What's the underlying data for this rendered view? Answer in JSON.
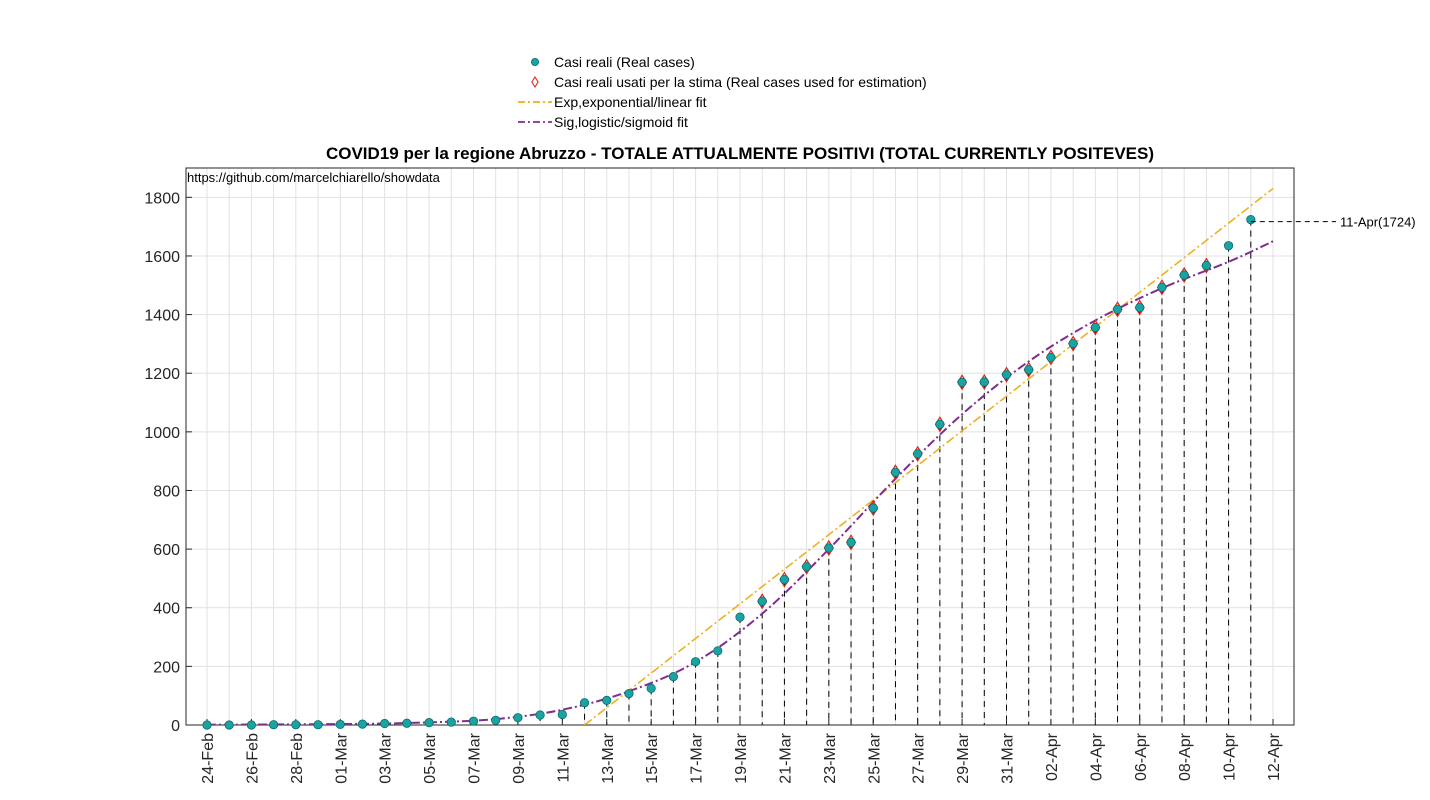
{
  "chart_data": {
    "type": "scatter",
    "title": "COVID19 per la regione Abruzzo - TOTALE ATTUALMENTE POSITIVI (TOTAL CURRENTLY POSITEVES)",
    "xlabel": "",
    "ylabel": "",
    "source_note": "https://github.com/marcelchiarello/showdata",
    "ylim": [
      0,
      1900
    ],
    "yticks": [
      0,
      200,
      400,
      600,
      800,
      1000,
      1200,
      1400,
      1600,
      1800
    ],
    "grid": true,
    "legend_position": "top-center, above plot",
    "x_dates": [
      "24-Feb",
      "25-Feb",
      "26-Feb",
      "27-Feb",
      "28-Feb",
      "29-Feb",
      "01-Mar",
      "02-Mar",
      "03-Mar",
      "04-Mar",
      "05-Mar",
      "06-Mar",
      "07-Mar",
      "08-Mar",
      "09-Mar",
      "10-Mar",
      "11-Mar",
      "12-Mar",
      "13-Mar",
      "14-Mar",
      "15-Mar",
      "16-Mar",
      "17-Mar",
      "18-Mar",
      "19-Mar",
      "20-Mar",
      "21-Mar",
      "22-Mar",
      "23-Mar",
      "24-Mar",
      "25-Mar",
      "26-Mar",
      "27-Mar",
      "28-Mar",
      "29-Mar",
      "30-Mar",
      "31-Mar",
      "01-Apr",
      "02-Apr",
      "03-Apr",
      "04-Apr",
      "05-Apr",
      "06-Apr",
      "07-Apr",
      "08-Apr",
      "09-Apr",
      "10-Apr",
      "11-Apr",
      "12-Apr"
    ],
    "x_tick_labels": [
      "24-Feb",
      "26-Feb",
      "28-Feb",
      "01-Mar",
      "03-Mar",
      "05-Mar",
      "07-Mar",
      "09-Mar",
      "11-Mar",
      "13-Mar",
      "15-Mar",
      "17-Mar",
      "19-Mar",
      "21-Mar",
      "23-Mar",
      "25-Mar",
      "27-Mar",
      "29-Mar",
      "31-Mar",
      "02-Apr",
      "04-Apr",
      "06-Apr",
      "08-Apr",
      "10-Apr",
      "12-Apr"
    ],
    "series": [
      {
        "name": "Casi reali (Real cases)",
        "marker": "circle",
        "color": "#1aa3a3",
        "values": [
          0,
          0,
          0,
          1,
          1,
          1,
          2,
          3,
          5,
          6,
          8,
          10,
          13,
          16,
          25,
          34,
          36,
          76,
          84,
          107,
          125,
          165,
          216,
          253,
          368,
          422,
          496,
          540,
          604,
          623,
          740,
          862,
          925,
          1026,
          1169,
          1170,
          1195,
          1212,
          1254,
          1301,
          1356,
          1418,
          1424,
          1493,
          1535,
          1567,
          1635,
          1724
        ]
      },
      {
        "name": "Casi reali usati per la stima (Real cases used for estimation)",
        "marker": "diamond-open",
        "color": "#e0261b",
        "start_date": "20-Mar",
        "values": [
          422,
          496,
          540,
          604,
          623,
          740,
          862,
          925,
          1026,
          1169,
          1170,
          1195,
          1212,
          1254,
          1301,
          1356,
          1418,
          1424,
          1493,
          1535,
          1567
        ]
      },
      {
        "name": "Exp,exponential/linear fit",
        "line": "dash-dot",
        "color": "#edb120",
        "points": [
          [
            "12-Mar",
            0
          ],
          [
            "12-Apr",
            1830
          ]
        ]
      },
      {
        "name": "Sig,logistic/sigmoid fit",
        "line": "dash-dot",
        "color": "#7e2f8e",
        "points": [
          [
            "24-Feb",
            1
          ],
          [
            "27-Feb",
            2
          ],
          [
            "02-Mar",
            4
          ],
          [
            "05-Mar",
            9
          ],
          [
            "08-Mar",
            20
          ],
          [
            "11-Mar",
            52
          ],
          [
            "14-Mar",
            115
          ],
          [
            "17-Mar",
            215
          ],
          [
            "20-Mar",
            380
          ],
          [
            "23-Mar",
            600
          ],
          [
            "26-Mar",
            840
          ],
          [
            "29-Mar",
            1060
          ],
          [
            "01-Apr",
            1240
          ],
          [
            "04-Apr",
            1380
          ],
          [
            "07-Apr",
            1490
          ],
          [
            "10-Apr",
            1580
          ],
          [
            "12-Apr",
            1650
          ]
        ]
      }
    ],
    "annotations": [
      {
        "date": "11-Apr",
        "value": 1724,
        "text": "11-Apr(1724)"
      }
    ]
  }
}
